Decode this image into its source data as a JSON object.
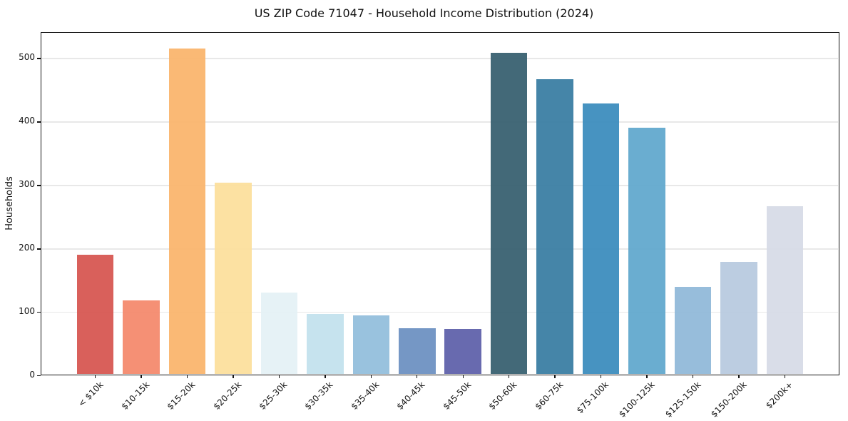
{
  "chart_data": {
    "type": "bar",
    "title": "US ZIP Code 71047 - Household Income Distribution (2024)",
    "xlabel": "",
    "ylabel": "Households",
    "categories": [
      "< $10k",
      "$10-15k",
      "$15-20k",
      "$20-25k",
      "$25-30k",
      "$30-35k",
      "$35-40k",
      "$40-45k",
      "$45-50k",
      "$50-60k",
      "$60-75k",
      "$75-100k",
      "$100-125k",
      "$125-150k",
      "$150-200k",
      "$200k+"
    ],
    "values": [
      190,
      118,
      515,
      304,
      130,
      97,
      94,
      74,
      73,
      508,
      467,
      428,
      390,
      139,
      179,
      267
    ],
    "bar_colors": [
      "#d6544f",
      "#f4886a",
      "#fab46a",
      "#fcdf9b",
      "#e4f1f5",
      "#c2e1ed",
      "#91bddb",
      "#6a8fc1",
      "#5c5fa9",
      "#355e6e",
      "#377ca1",
      "#398bbc",
      "#5fa7cc",
      "#8fb8d8",
      "#b7c9df",
      "#d6dae6"
    ],
    "yticks": [
      0,
      100,
      200,
      300,
      400,
      500
    ],
    "ylim": [
      0,
      541
    ],
    "xlim": [
      -1.19,
      16.19
    ],
    "bar_width_fraction": 0.8,
    "grid": "horizontal",
    "legend": "none",
    "background_color": "#ffffff",
    "spine_color": "#141414",
    "gridline_color": "#e8e8e8"
  }
}
